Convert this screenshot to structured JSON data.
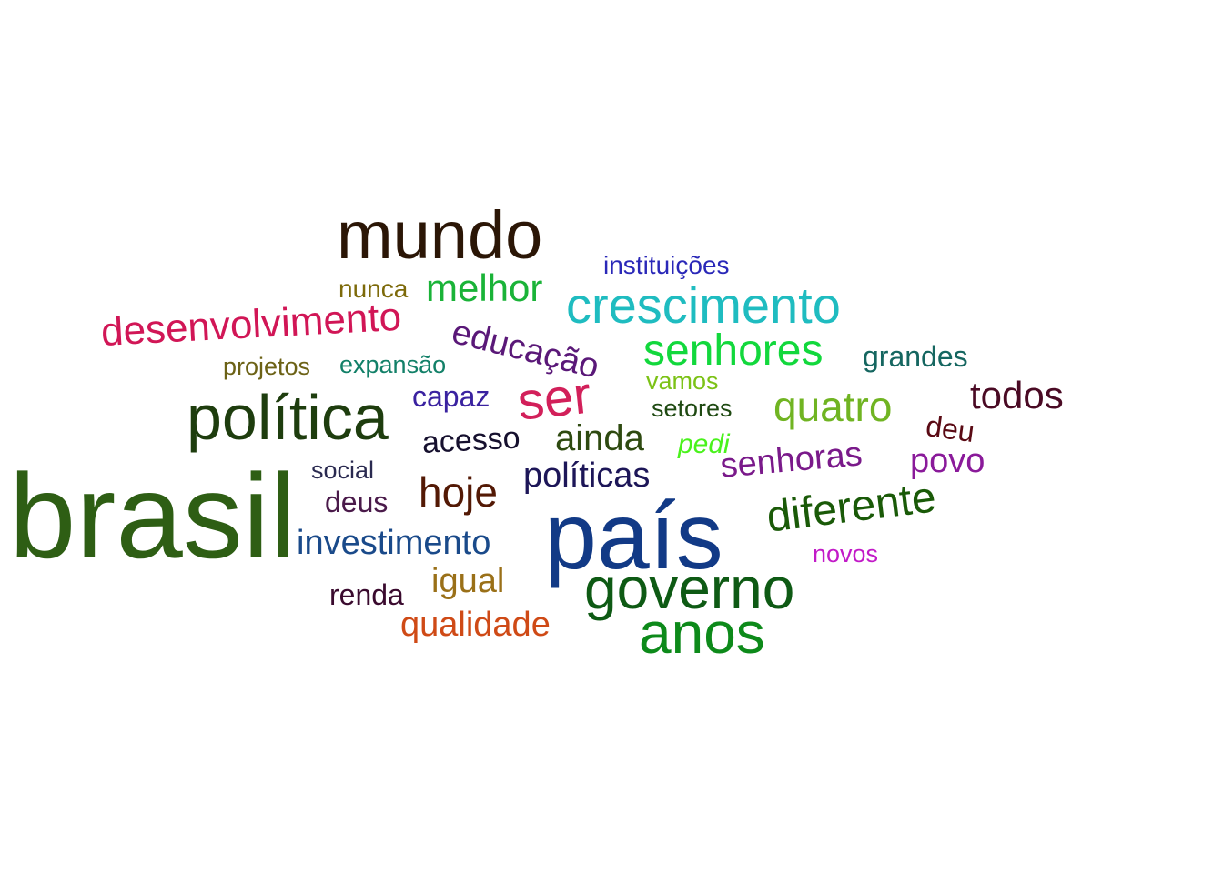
{
  "word_cloud": {
    "words": [
      {
        "text": "brasil",
        "color": "#2e5e14"
      },
      {
        "text": "país",
        "color": "#123a86"
      },
      {
        "text": "mundo",
        "color": "#2b1606"
      },
      {
        "text": "política",
        "color": "#1e3d0e"
      },
      {
        "text": "governo",
        "color": "#0e5a14"
      },
      {
        "text": "anos",
        "color": "#0d8a1a"
      },
      {
        "text": "crescimento",
        "color": "#1fbcc0"
      },
      {
        "text": "ser",
        "color": "#d2205a"
      },
      {
        "text": "senhores",
        "color": "#12d83c"
      },
      {
        "text": "diferente",
        "color": "#1a5a08"
      },
      {
        "text": "desenvolvimento",
        "color": "#d11656"
      },
      {
        "text": "quatro",
        "color": "#70b422"
      },
      {
        "text": "melhor",
        "color": "#1ab338"
      },
      {
        "text": "hoje",
        "color": "#531905"
      },
      {
        "text": "investimento",
        "color": "#1a4a8a"
      },
      {
        "text": "políticas",
        "color": "#1d1658"
      },
      {
        "text": "senhoras",
        "color": "#7a1a8a"
      },
      {
        "text": "educação",
        "color": "#5a1878"
      },
      {
        "text": "todos",
        "color": "#4a0a24"
      },
      {
        "text": "ainda",
        "color": "#2e4a10"
      },
      {
        "text": "igual",
        "color": "#9a7018"
      },
      {
        "text": "qualidade",
        "color": "#cf4a16"
      },
      {
        "text": "povo",
        "color": "#8a1a9a"
      },
      {
        "text": "acesso",
        "color": "#16102e"
      },
      {
        "text": "capaz",
        "color": "#3a22a0"
      },
      {
        "text": "grandes",
        "color": "#156660"
      },
      {
        "text": "deu",
        "color": "#5a0a14"
      },
      {
        "text": "instituições",
        "color": "#2a28b8"
      },
      {
        "text": "nunca",
        "color": "#7d6a0a"
      },
      {
        "text": "expansão",
        "color": "#128068"
      },
      {
        "text": "projetos",
        "color": "#6c6216"
      },
      {
        "text": "vamos",
        "color": "#7cc216"
      },
      {
        "text": "setores",
        "color": "#1f4a12"
      },
      {
        "text": "pedi",
        "color": "#4af21c"
      },
      {
        "text": "social",
        "color": "#2a2a50"
      },
      {
        "text": "deus",
        "color": "#4a1a4a"
      },
      {
        "text": "renda",
        "color": "#3a0a2e"
      },
      {
        "text": "novos",
        "color": "#c21ac8"
      }
    ]
  }
}
